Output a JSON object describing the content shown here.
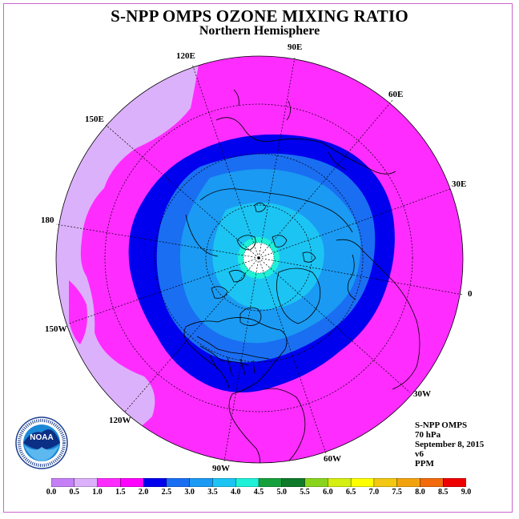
{
  "title": "S-NPP OMPS OZONE MIXING RATIO",
  "subtitle": "Northern Hemisphere",
  "longitude_labels": [
    "90E",
    "60E",
    "30E",
    "0",
    "30W",
    "60W",
    "90W",
    "120W",
    "150W",
    "180",
    "150E",
    "120E"
  ],
  "info": {
    "instrument": "S-NPP OMPS",
    "level": "70 hPa",
    "date": "September 8, 2015",
    "version": "v6",
    "units": "PPM"
  },
  "logo_text": "NOAA",
  "logo_ring_text": "NATIONAL OCEANIC AND ATMOSPHERIC ADMINISTRATION · U.S. DEPARTMENT OF COMMERCE",
  "colorbar": {
    "ticks": [
      "0.0",
      "0.5",
      "1.0",
      "1.5",
      "2.0",
      "2.5",
      "3.0",
      "3.5",
      "4.0",
      "4.5",
      "5.0",
      "5.5",
      "6.0",
      "6.5",
      "7.0",
      "7.5",
      "8.0",
      "8.5",
      "9.0"
    ],
    "colors": [
      "#c57ff6",
      "#dcb1fb",
      "#ff2cff",
      "#ff00ff",
      "#0000ee",
      "#1a6ef2",
      "#1a9af3",
      "#1cc4f3",
      "#1ff0d8",
      "#16a03c",
      "#0f7a2a",
      "#8ad41e",
      "#d4ef12",
      "#ffff00",
      "#f3c712",
      "#f2a20f",
      "#f26a0c",
      "#ee0000",
      "#8a5a3a"
    ]
  },
  "map": {
    "pole_value_ppm": "no data",
    "field_bands_ppm": [
      "0.5-1.0",
      "1.0-1.5",
      "1.5-2.0",
      "2.0-2.5",
      "2.5-3.0",
      "3.0-3.5",
      "3.5-4.0"
    ]
  }
}
